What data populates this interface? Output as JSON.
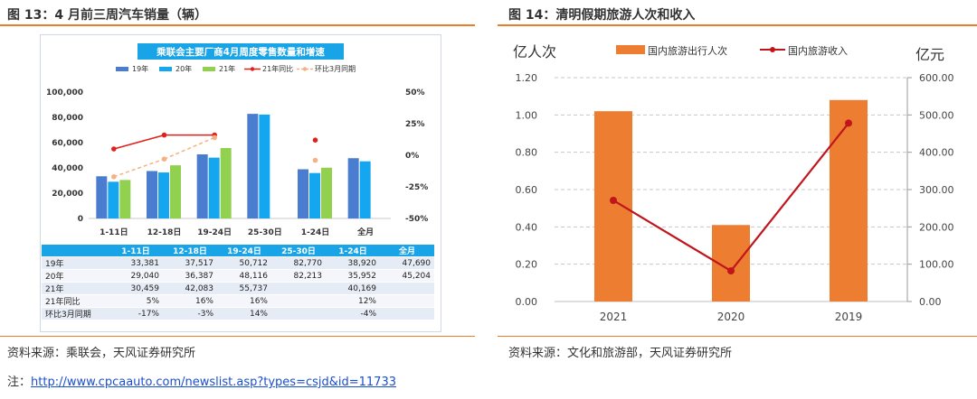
{
  "left": {
    "figure_title": "图 13：4 月前三周汽车销量（辆）",
    "chart_title": "乘联会主要厂商4月周度零售数量和增速",
    "source": "资料来源：乘联会，天风证券研究所"
  },
  "right": {
    "figure_title": "图 14：清明假期旅游人次和收入",
    "source": "资料来源：文化和旅游部，天风证券研究所"
  },
  "note": {
    "prefix": "注：",
    "link": "http://www.cpcaauto.com/newslist.asp?types=csjd&id=11733"
  },
  "chart_data": [
    {
      "type": "bar",
      "title": "乘联会主要厂商4月周度零售数量和增速",
      "categories": [
        "1-11日",
        "12-18日",
        "19-24日",
        "25-30日",
        "1-24日",
        "全月"
      ],
      "series": [
        {
          "name": "19年",
          "kind": "bar",
          "color": "#4a7ccf",
          "values": [
            33381,
            37517,
            50712,
            82770,
            38920,
            47690
          ]
        },
        {
          "name": "20年",
          "kind": "bar",
          "color": "#14a7ef",
          "values": [
            29040,
            36387,
            48116,
            82213,
            35952,
            45204
          ]
        },
        {
          "name": "21年",
          "kind": "bar",
          "color": "#92d050",
          "values": [
            30459,
            42083,
            55737,
            null,
            40169,
            null
          ]
        },
        {
          "name": "21年同比",
          "kind": "line",
          "axis": "right",
          "color": "#e0201b",
          "values": [
            5,
            16,
            16,
            null,
            12,
            null
          ]
        },
        {
          "name": "环比3月同期",
          "kind": "line",
          "axis": "right",
          "dashed": true,
          "color": "#f4b183",
          "values": [
            -17,
            -3,
            14,
            null,
            -4,
            null
          ]
        }
      ],
      "y_left": {
        "ticks": [
          "100,000",
          "80,000",
          "60,000",
          "40,000",
          "20,000",
          "0"
        ],
        "range": [
          0,
          100000
        ]
      },
      "y_right": {
        "ticks": [
          "50%",
          "25%",
          "0%",
          "-25%",
          "-50%"
        ],
        "range": [
          -50,
          50
        ]
      },
      "legend_position": "top",
      "table": {
        "header": [
          "",
          "1-11日",
          "12-18日",
          "19-24日",
          "25-30日",
          "1-24日",
          "全月"
        ],
        "rows": [
          [
            "19年",
            "33,381",
            "37,517",
            "50,712",
            "82,770",
            "38,920",
            "47,690"
          ],
          [
            "20年",
            "29,040",
            "36,387",
            "48,116",
            "82,213",
            "35,952",
            "45,204"
          ],
          [
            "21年",
            "30,459",
            "42,083",
            "55,737",
            "",
            "40,169",
            ""
          ],
          [
            "21年同比",
            "5%",
            "16%",
            "16%",
            "",
            "12%",
            ""
          ],
          [
            "环比3月同期",
            "-17%",
            "-3%",
            "14%",
            "",
            "-4%",
            ""
          ]
        ]
      }
    },
    {
      "type": "bar",
      "categories": [
        "2021",
        "2020",
        "2019"
      ],
      "series": [
        {
          "name": "国内旅游出行人次",
          "kind": "bar",
          "axis": "left",
          "color": "#ed7d31",
          "values": [
            1.02,
            0.41,
            1.08
          ]
        },
        {
          "name": "国内旅游收入",
          "kind": "line",
          "axis": "right",
          "color": "#c0151b",
          "values": [
            271,
            82,
            478
          ]
        }
      ],
      "ylabel_left": "亿人次",
      "ylabel_right": "亿元",
      "y_left": {
        "ticks": [
          "1.20",
          "1.00",
          "0.80",
          "0.60",
          "0.40",
          "0.20",
          "0.00"
        ],
        "range": [
          0,
          1.2
        ]
      },
      "y_right": {
        "ticks": [
          "600.00",
          "500.00",
          "400.00",
          "300.00",
          "200.00",
          "100.00",
          "0.00"
        ],
        "range": [
          0,
          600
        ]
      },
      "grid": true,
      "legend_position": "top"
    }
  ]
}
